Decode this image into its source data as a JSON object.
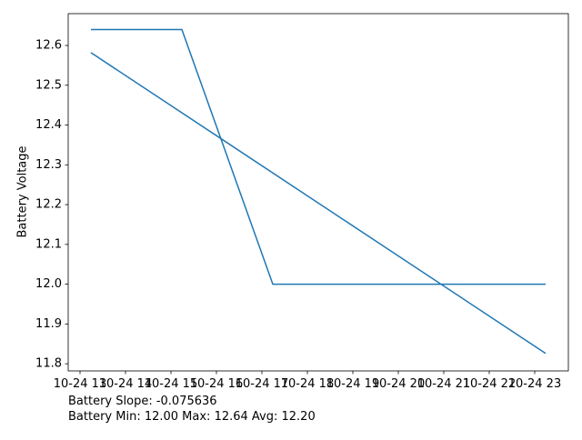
{
  "chart_data": {
    "type": "line",
    "y_label": "Battery Voltage",
    "y_label_color": "#1f77b4",
    "series": [
      {
        "color": "#1f77b4",
        "x": [
          13.24,
          14.24,
          15.24,
          16.24,
          17.24,
          18.24,
          19.24,
          20.24,
          21.24,
          22.24,
          23.24
        ],
        "values": [
          12.64,
          12.64,
          12.64,
          12.32,
          12.0,
          12.0,
          12.0,
          12.0,
          12.0,
          12.0,
          12.0
        ]
      },
      {
        "color": "#1f77b4",
        "x": [
          13.24,
          23.24
        ],
        "values": [
          12.582,
          11.826
        ]
      }
    ],
    "xlim": [
      12.74,
      23.74
    ],
    "xticks": [
      {
        "value": 13,
        "label": "10-24 13"
      },
      {
        "value": 14,
        "label": "10-24 14"
      },
      {
        "value": 15,
        "label": "10-24 15"
      },
      {
        "value": 16,
        "label": "10-24 16"
      },
      {
        "value": 17,
        "label": "10-24 17"
      },
      {
        "value": 18,
        "label": "10-24 18"
      },
      {
        "value": 19,
        "label": "10-24 19"
      },
      {
        "value": 20,
        "label": "10-24 20"
      },
      {
        "value": 21,
        "label": "10-24 21"
      },
      {
        "value": 22,
        "label": "10-24 22"
      },
      {
        "value": 23,
        "label": "10-24 23"
      }
    ],
    "ylim": [
      11.782,
      12.68
    ],
    "yticks": [
      11.8,
      11.9,
      {
        "value": 12,
        "label": "12.0"
      },
      12.1,
      12.2,
      12.3,
      12.4,
      12.5,
      12.6
    ],
    "annotations": [
      "Battery Slope: -0.075636",
      "Battery Min: 12.00 Max: 12.64 Avg: 12.20"
    ]
  }
}
